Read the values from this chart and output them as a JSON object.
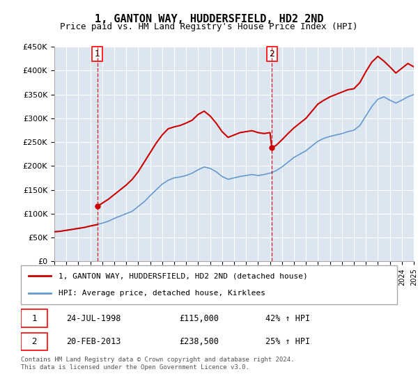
{
  "title": "1, GANTON WAY, HUDDERSFIELD, HD2 2ND",
  "subtitle": "Price paid vs. HM Land Registry's House Price Index (HPI)",
  "legend_line1": "1, GANTON WAY, HUDDERSFIELD, HD2 2ND (detached house)",
  "legend_line2": "HPI: Average price, detached house, Kirklees",
  "sale1_date": "1998-07-24",
  "sale1_label": "24-JUL-1998",
  "sale1_price": 115000,
  "sale1_pct": "42% ↑ HPI",
  "sale2_date": "2013-02-20",
  "sale2_label": "20-FEB-2013",
  "sale2_price": 238500,
  "sale2_pct": "25% ↑ HPI",
  "footer": "Contains HM Land Registry data © Crown copyright and database right 2024.\nThis data is licensed under the Open Government Licence v3.0.",
  "property_color": "#cc0000",
  "hpi_color": "#6699cc",
  "vline_color": "#cc0000",
  "background_color": "#dce6f1",
  "plot_bg": "#ffffff",
  "ylim": [
    0,
    450000
  ],
  "yticks": [
    0,
    50000,
    100000,
    150000,
    200000,
    250000,
    300000,
    350000,
    400000,
    450000
  ],
  "ytick_labels": [
    "£0",
    "£50K",
    "£100K",
    "£150K",
    "£200K",
    "£250K",
    "£300K",
    "£350K",
    "£400K",
    "£450K"
  ],
  "xstart": 1995,
  "xend": 2025,
  "hpi_years": [
    1995,
    1995.5,
    1996,
    1996.5,
    1997,
    1997.5,
    1998,
    1998.5,
    1999,
    1999.5,
    2000,
    2000.5,
    2001,
    2001.5,
    2002,
    2002.5,
    2003,
    2003.5,
    2004,
    2004.5,
    2005,
    2005.5,
    2006,
    2006.5,
    2007,
    2007.5,
    2008,
    2008.5,
    2009,
    2009.5,
    2010,
    2010.5,
    2011,
    2011.5,
    2012,
    2012.5,
    2013,
    2013.5,
    2014,
    2014.5,
    2015,
    2015.5,
    2016,
    2016.5,
    2017,
    2017.5,
    2018,
    2018.5,
    2019,
    2019.5,
    2020,
    2020.5,
    2021,
    2021.5,
    2022,
    2022.5,
    2023,
    2023.5,
    2024,
    2024.5,
    2025
  ],
  "hpi_values": [
    62000,
    63000,
    65000,
    67000,
    69000,
    71000,
    74000,
    77000,
    80000,
    84000,
    90000,
    95000,
    100000,
    105000,
    115000,
    125000,
    138000,
    150000,
    162000,
    170000,
    175000,
    177000,
    180000,
    185000,
    192000,
    198000,
    195000,
    188000,
    178000,
    172000,
    175000,
    178000,
    180000,
    182000,
    180000,
    182000,
    185000,
    190000,
    198000,
    208000,
    218000,
    225000,
    232000,
    242000,
    252000,
    258000,
    262000,
    265000,
    268000,
    272000,
    275000,
    285000,
    305000,
    325000,
    340000,
    345000,
    338000,
    332000,
    338000,
    345000,
    350000
  ],
  "prop_years_before_sale1": [
    1995,
    1995.5,
    1996,
    1996.5,
    1997,
    1997.5,
    1998,
    1998.58
  ],
  "prop_values_before_sale1": [
    62000,
    63000,
    65000,
    67000,
    69000,
    71000,
    74000,
    77000
  ],
  "prop_years_sale1_to_sale2": [
    1998.58,
    1999,
    1999.5,
    2000,
    2000.5,
    2001,
    2001.5,
    2002,
    2002.5,
    2003,
    2003.5,
    2004,
    2004.5,
    2005,
    2005.5,
    2006,
    2006.5,
    2007,
    2007.5,
    2008,
    2008.5,
    2009,
    2009.5,
    2010,
    2010.5,
    2011,
    2011.5,
    2012,
    2012.5,
    2013,
    2013.14
  ],
  "prop_values_sale1_to_sale2": [
    115000,
    122000,
    130000,
    140000,
    150000,
    160000,
    172000,
    188000,
    208000,
    228000,
    248000,
    265000,
    278000,
    282000,
    285000,
    290000,
    296000,
    308000,
    315000,
    305000,
    290000,
    272000,
    260000,
    265000,
    270000,
    272000,
    274000,
    270000,
    268000,
    270000,
    238500
  ],
  "prop_years_after_sale2": [
    2013.14,
    2013.5,
    2014,
    2014.5,
    2015,
    2015.5,
    2016,
    2016.5,
    2017,
    2017.5,
    2018,
    2018.5,
    2019,
    2019.5,
    2020,
    2020.5,
    2021,
    2021.5,
    2022,
    2022.5,
    2023,
    2023.5,
    2024,
    2024.5,
    2025
  ],
  "prop_values_after_sale2": [
    238500,
    243000,
    255000,
    268000,
    280000,
    290000,
    300000,
    315000,
    330000,
    338000,
    345000,
    350000,
    355000,
    360000,
    362000,
    375000,
    398000,
    418000,
    430000,
    420000,
    408000,
    395000,
    405000,
    415000,
    408000
  ]
}
